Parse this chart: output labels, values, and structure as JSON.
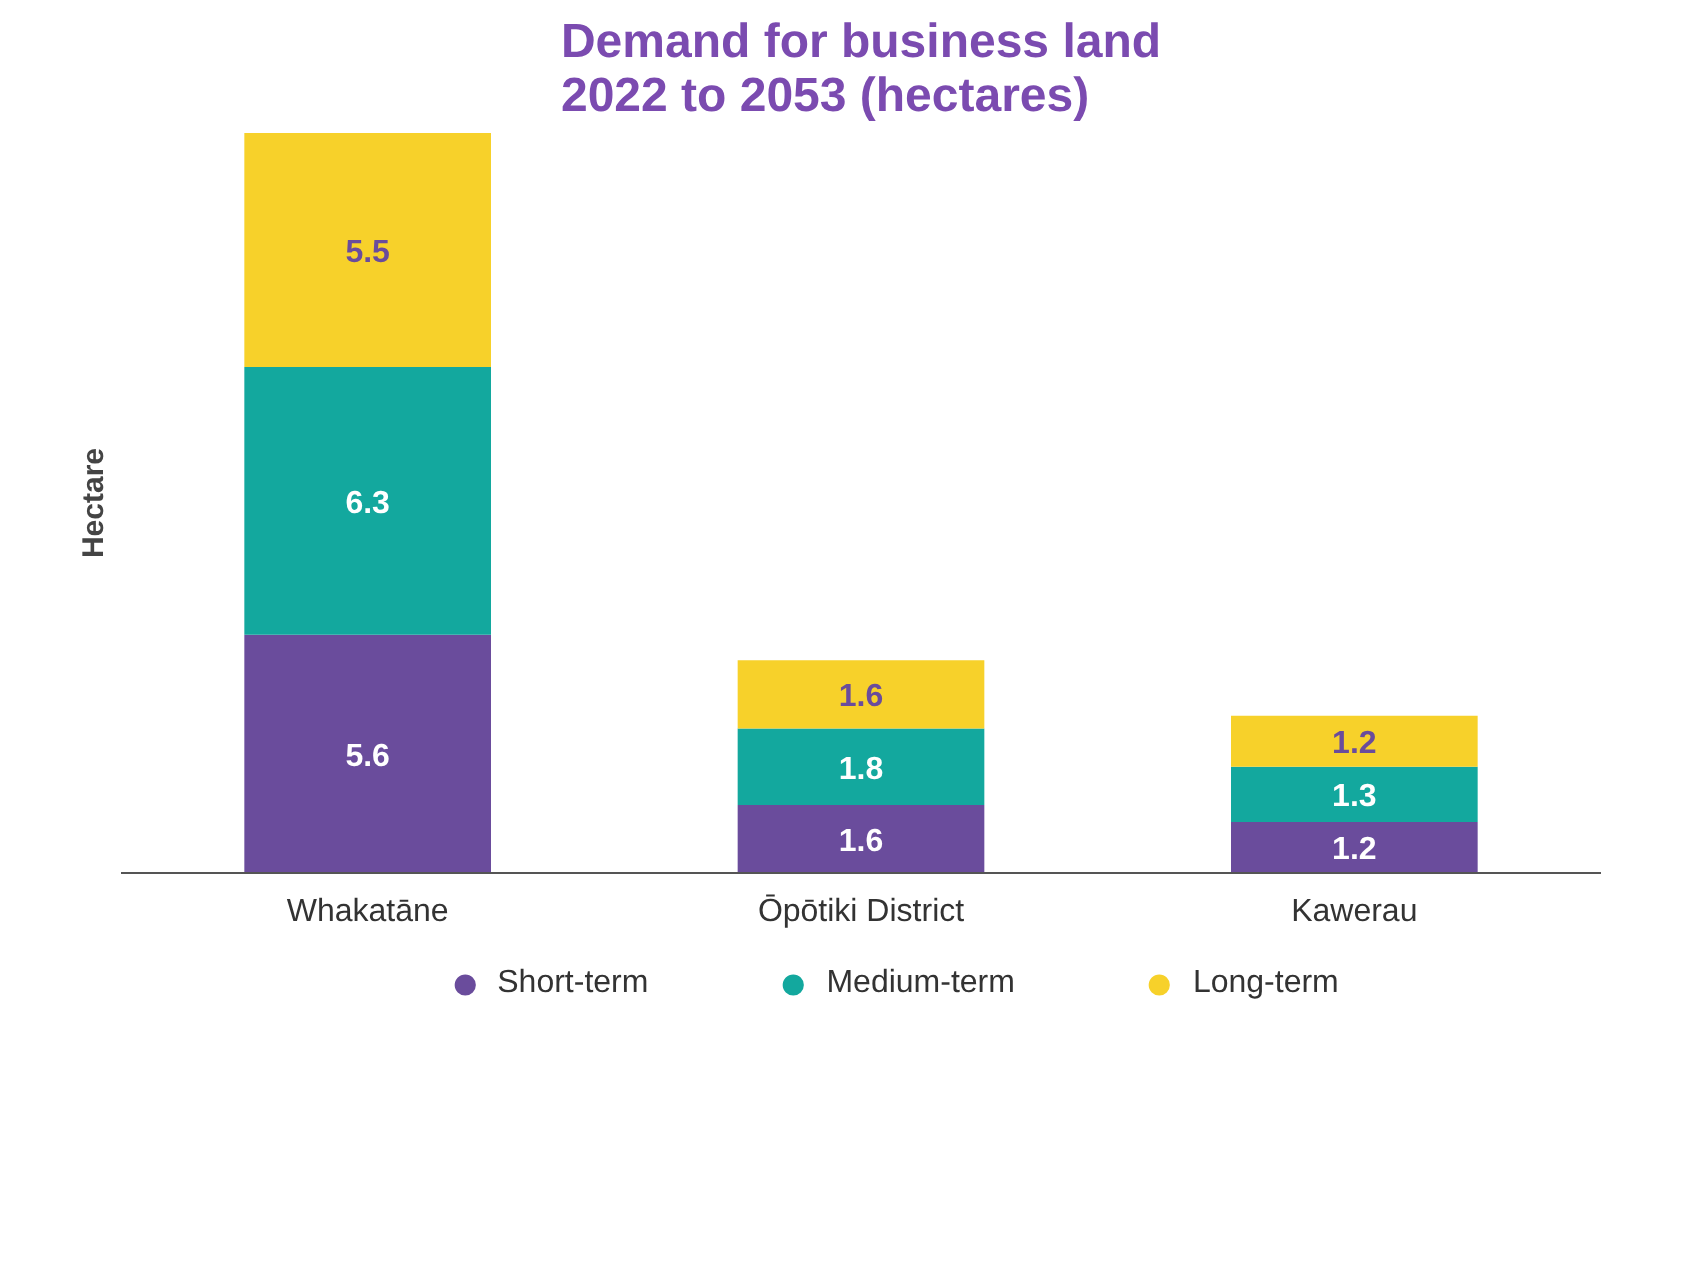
{
  "chart_data": {
    "type": "bar",
    "stacked": true,
    "title": "Demand for business land\n2022 to 2053 (hectares)",
    "ylabel": "Hectare",
    "categories": [
      "Whakatāne",
      "Ōpōtiki District",
      "Kawerau"
    ],
    "series": [
      {
        "name": "Short-term",
        "color": "#6a4c9c",
        "values": [
          5.6,
          1.6,
          1.2
        ]
      },
      {
        "name": "Medium-term",
        "color": "#13a89e",
        "values": [
          6.3,
          1.8,
          1.3
        ]
      },
      {
        "name": "Long-term",
        "color": "#f7d12a",
        "values": [
          5.5,
          1.6,
          1.2
        ]
      }
    ],
    "data_labels": true,
    "legend": "bottom",
    "grid": false
  }
}
